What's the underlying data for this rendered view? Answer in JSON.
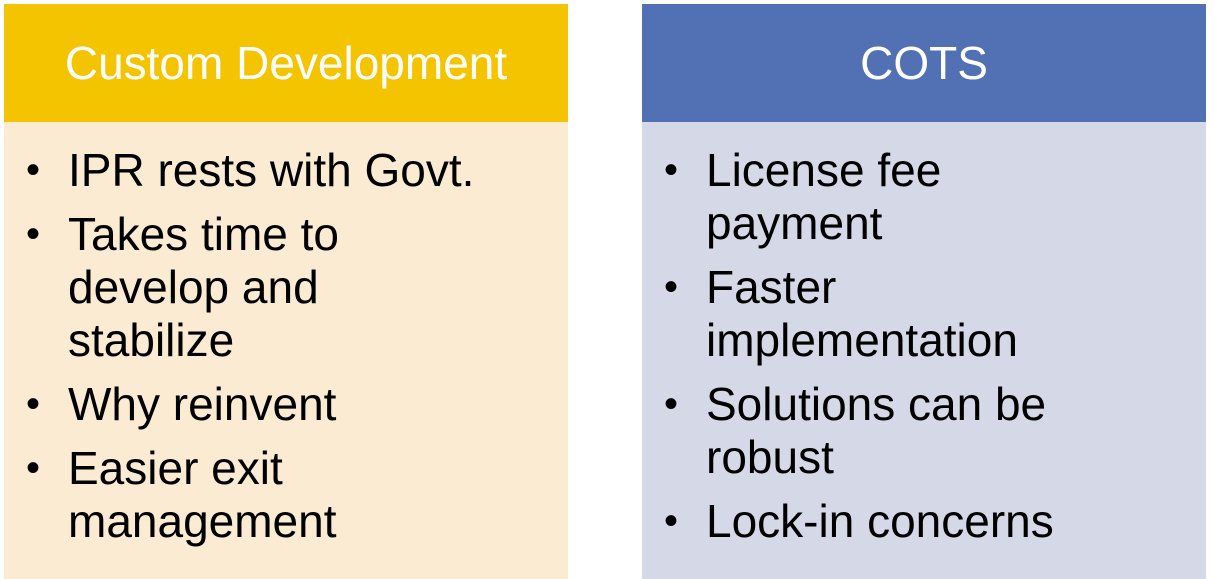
{
  "custom_development": {
    "title": "Custom Development",
    "color": "#f5c400",
    "body_color": "#fbebd2",
    "points": [
      "IPR rests with Govt.",
      "Takes time to develop and stabilize",
      "Why reinvent",
      "Easier exit management"
    ]
  },
  "cots": {
    "title": "COTS",
    "color": "#5270b4",
    "body_color": "#d5d8e6",
    "points": [
      "License fee payment",
      "Faster implementation",
      "Solutions can be robust",
      "Lock-in concerns"
    ]
  }
}
